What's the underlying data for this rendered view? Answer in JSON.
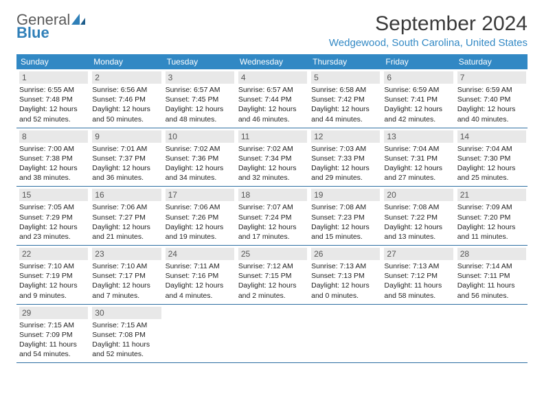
{
  "logo": {
    "general": "General",
    "blue": "Blue"
  },
  "title": "September 2024",
  "location": "Wedgewood, South Carolina, United States",
  "colors": {
    "header_bg": "#3188c4",
    "header_text": "#ffffff",
    "daynum_bg": "#e8e8e8",
    "border": "#2a6ca0",
    "title": "#3a3a3a",
    "location": "#3188c4"
  },
  "day_headers": [
    "Sunday",
    "Monday",
    "Tuesday",
    "Wednesday",
    "Thursday",
    "Friday",
    "Saturday"
  ],
  "weeks": [
    [
      {
        "n": "1",
        "sr": "Sunrise: 6:55 AM",
        "ss": "Sunset: 7:48 PM",
        "dl": "Daylight: 12 hours and 52 minutes."
      },
      {
        "n": "2",
        "sr": "Sunrise: 6:56 AM",
        "ss": "Sunset: 7:46 PM",
        "dl": "Daylight: 12 hours and 50 minutes."
      },
      {
        "n": "3",
        "sr": "Sunrise: 6:57 AM",
        "ss": "Sunset: 7:45 PM",
        "dl": "Daylight: 12 hours and 48 minutes."
      },
      {
        "n": "4",
        "sr": "Sunrise: 6:57 AM",
        "ss": "Sunset: 7:44 PM",
        "dl": "Daylight: 12 hours and 46 minutes."
      },
      {
        "n": "5",
        "sr": "Sunrise: 6:58 AM",
        "ss": "Sunset: 7:42 PM",
        "dl": "Daylight: 12 hours and 44 minutes."
      },
      {
        "n": "6",
        "sr": "Sunrise: 6:59 AM",
        "ss": "Sunset: 7:41 PM",
        "dl": "Daylight: 12 hours and 42 minutes."
      },
      {
        "n": "7",
        "sr": "Sunrise: 6:59 AM",
        "ss": "Sunset: 7:40 PM",
        "dl": "Daylight: 12 hours and 40 minutes."
      }
    ],
    [
      {
        "n": "8",
        "sr": "Sunrise: 7:00 AM",
        "ss": "Sunset: 7:38 PM",
        "dl": "Daylight: 12 hours and 38 minutes."
      },
      {
        "n": "9",
        "sr": "Sunrise: 7:01 AM",
        "ss": "Sunset: 7:37 PM",
        "dl": "Daylight: 12 hours and 36 minutes."
      },
      {
        "n": "10",
        "sr": "Sunrise: 7:02 AM",
        "ss": "Sunset: 7:36 PM",
        "dl": "Daylight: 12 hours and 34 minutes."
      },
      {
        "n": "11",
        "sr": "Sunrise: 7:02 AM",
        "ss": "Sunset: 7:34 PM",
        "dl": "Daylight: 12 hours and 32 minutes."
      },
      {
        "n": "12",
        "sr": "Sunrise: 7:03 AM",
        "ss": "Sunset: 7:33 PM",
        "dl": "Daylight: 12 hours and 29 minutes."
      },
      {
        "n": "13",
        "sr": "Sunrise: 7:04 AM",
        "ss": "Sunset: 7:31 PM",
        "dl": "Daylight: 12 hours and 27 minutes."
      },
      {
        "n": "14",
        "sr": "Sunrise: 7:04 AM",
        "ss": "Sunset: 7:30 PM",
        "dl": "Daylight: 12 hours and 25 minutes."
      }
    ],
    [
      {
        "n": "15",
        "sr": "Sunrise: 7:05 AM",
        "ss": "Sunset: 7:29 PM",
        "dl": "Daylight: 12 hours and 23 minutes."
      },
      {
        "n": "16",
        "sr": "Sunrise: 7:06 AM",
        "ss": "Sunset: 7:27 PM",
        "dl": "Daylight: 12 hours and 21 minutes."
      },
      {
        "n": "17",
        "sr": "Sunrise: 7:06 AM",
        "ss": "Sunset: 7:26 PM",
        "dl": "Daylight: 12 hours and 19 minutes."
      },
      {
        "n": "18",
        "sr": "Sunrise: 7:07 AM",
        "ss": "Sunset: 7:24 PM",
        "dl": "Daylight: 12 hours and 17 minutes."
      },
      {
        "n": "19",
        "sr": "Sunrise: 7:08 AM",
        "ss": "Sunset: 7:23 PM",
        "dl": "Daylight: 12 hours and 15 minutes."
      },
      {
        "n": "20",
        "sr": "Sunrise: 7:08 AM",
        "ss": "Sunset: 7:22 PM",
        "dl": "Daylight: 12 hours and 13 minutes."
      },
      {
        "n": "21",
        "sr": "Sunrise: 7:09 AM",
        "ss": "Sunset: 7:20 PM",
        "dl": "Daylight: 12 hours and 11 minutes."
      }
    ],
    [
      {
        "n": "22",
        "sr": "Sunrise: 7:10 AM",
        "ss": "Sunset: 7:19 PM",
        "dl": "Daylight: 12 hours and 9 minutes."
      },
      {
        "n": "23",
        "sr": "Sunrise: 7:10 AM",
        "ss": "Sunset: 7:17 PM",
        "dl": "Daylight: 12 hours and 7 minutes."
      },
      {
        "n": "24",
        "sr": "Sunrise: 7:11 AM",
        "ss": "Sunset: 7:16 PM",
        "dl": "Daylight: 12 hours and 4 minutes."
      },
      {
        "n": "25",
        "sr": "Sunrise: 7:12 AM",
        "ss": "Sunset: 7:15 PM",
        "dl": "Daylight: 12 hours and 2 minutes."
      },
      {
        "n": "26",
        "sr": "Sunrise: 7:13 AM",
        "ss": "Sunset: 7:13 PM",
        "dl": "Daylight: 12 hours and 0 minutes."
      },
      {
        "n": "27",
        "sr": "Sunrise: 7:13 AM",
        "ss": "Sunset: 7:12 PM",
        "dl": "Daylight: 11 hours and 58 minutes."
      },
      {
        "n": "28",
        "sr": "Sunrise: 7:14 AM",
        "ss": "Sunset: 7:11 PM",
        "dl": "Daylight: 11 hours and 56 minutes."
      }
    ],
    [
      {
        "n": "29",
        "sr": "Sunrise: 7:15 AM",
        "ss": "Sunset: 7:09 PM",
        "dl": "Daylight: 11 hours and 54 minutes."
      },
      {
        "n": "30",
        "sr": "Sunrise: 7:15 AM",
        "ss": "Sunset: 7:08 PM",
        "dl": "Daylight: 11 hours and 52 minutes."
      },
      null,
      null,
      null,
      null,
      null
    ]
  ]
}
